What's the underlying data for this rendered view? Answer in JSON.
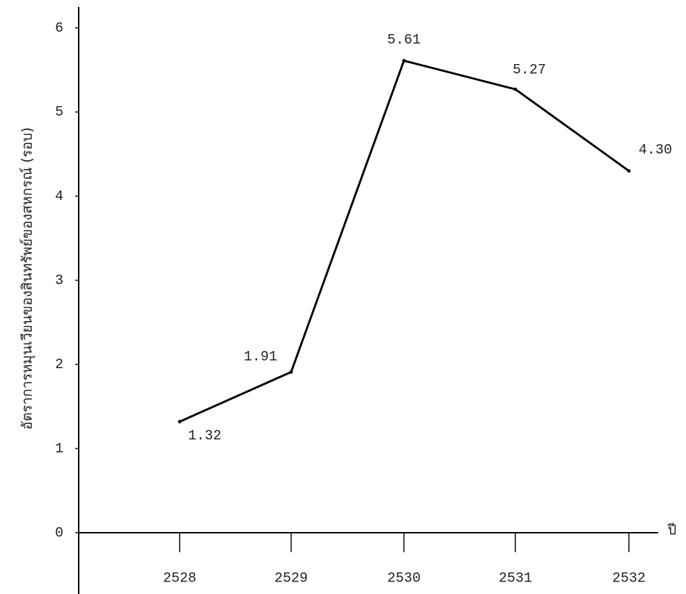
{
  "chart_data": {
    "type": "line",
    "ylabel": "อัตราการหมุนเวียนของสินทรัพย์ของสหกรณ์ (รอบ)",
    "xlabel": "ปี",
    "categories": [
      "2528",
      "2529",
      "2530",
      "2531",
      "2532"
    ],
    "series": [
      {
        "color": "#000000",
        "values": [
          1.32,
          1.91,
          5.61,
          5.27,
          4.3
        ],
        "value_labels": [
          "1.32",
          "1.91",
          "5.61",
          "5.27",
          "4.30"
        ]
      }
    ],
    "ylim": [
      0,
      6
    ],
    "yticks": [
      0,
      1,
      2,
      3,
      4,
      5,
      6
    ]
  }
}
